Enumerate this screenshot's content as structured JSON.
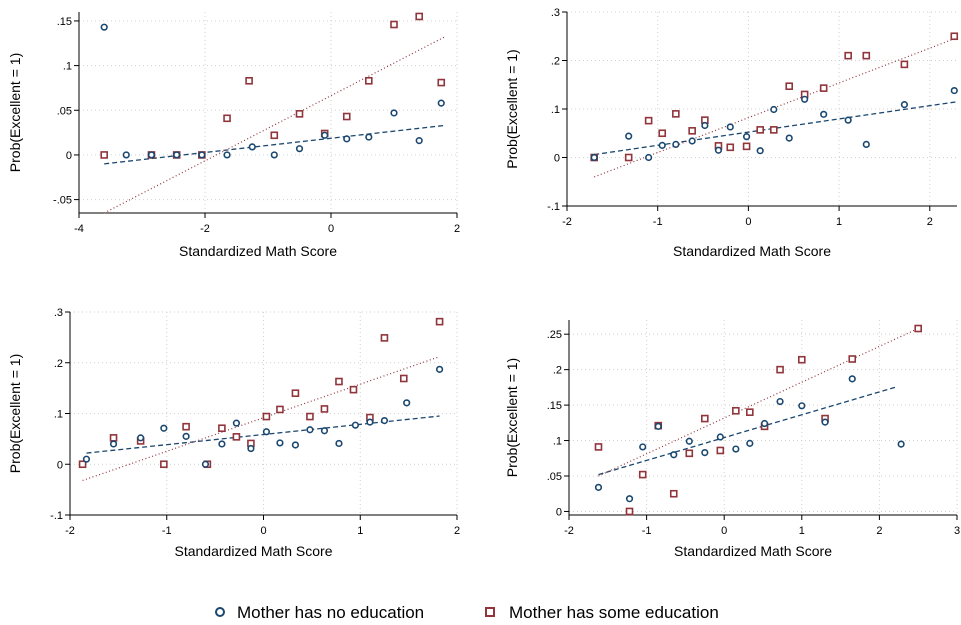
{
  "legend": {
    "position": "bottom",
    "items": [
      {
        "label": "Mother has no education",
        "marker": "circle",
        "color": "#1a476f"
      },
      {
        "label": "Mother has some education",
        "marker": "square",
        "color": "#90353b"
      }
    ]
  },
  "chart_data": [
    {
      "type": "scatter",
      "xlabel": "Standardized Math Score",
      "ylabel": "Prob(Excellent = 1)",
      "xlim": [
        -4,
        2
      ],
      "ylim": [
        -0.065,
        0.16
      ],
      "xticks": [
        -4,
        -2,
        0,
        2
      ],
      "xtick_labels": [
        "-4",
        "-2",
        "0",
        "2"
      ],
      "yticks": [
        -0.05,
        0,
        0.05,
        0.1,
        0.15
      ],
      "ytick_labels": [
        "-.05",
        "0",
        ".05",
        ".1",
        ".15"
      ],
      "grid": true,
      "series": [
        {
          "name": "Mother has no education",
          "marker": "circle",
          "color": "#1a476f",
          "points": [
            [
              -3.6,
              0.143
            ],
            [
              -3.25,
              0.0
            ],
            [
              -2.85,
              0.0
            ],
            [
              -2.45,
              0.0
            ],
            [
              -2.05,
              0.0
            ],
            [
              -1.65,
              0.0
            ],
            [
              -1.25,
              0.009
            ],
            [
              -0.9,
              0.0
            ],
            [
              -0.5,
              0.007
            ],
            [
              -0.1,
              0.022
            ],
            [
              0.25,
              0.018
            ],
            [
              0.6,
              0.02
            ],
            [
              1.0,
              0.047
            ],
            [
              1.4,
              0.016
            ],
            [
              1.75,
              0.058
            ]
          ],
          "fit": {
            "style": "dashed",
            "x": [
              -3.6,
              1.8
            ],
            "y": [
              -0.01,
              0.033
            ]
          }
        },
        {
          "name": "Mother has some education",
          "marker": "square",
          "color": "#90353b",
          "points": [
            [
              -3.6,
              0.0
            ],
            [
              -2.85,
              0.0
            ],
            [
              -2.45,
              0.0
            ],
            [
              -2.05,
              0.0
            ],
            [
              -1.65,
              0.041
            ],
            [
              -1.3,
              0.083
            ],
            [
              -0.9,
              0.022
            ],
            [
              -0.5,
              0.046
            ],
            [
              -0.1,
              0.024
            ],
            [
              0.25,
              0.043
            ],
            [
              0.6,
              0.083
            ],
            [
              1.0,
              0.146
            ],
            [
              1.4,
              0.155
            ],
            [
              1.75,
              0.081
            ]
          ],
          "fit": {
            "style": "dotted",
            "x": [
              -3.6,
              1.8
            ],
            "y": [
              -0.065,
              0.132
            ]
          }
        }
      ]
    },
    {
      "type": "scatter",
      "xlabel": "Standardized Math Score",
      "ylabel": "Prob(Excellent = 1)",
      "xlim": [
        -2,
        2.3
      ],
      "ylim": [
        -0.1,
        0.3
      ],
      "xticks": [
        -2,
        -1,
        0,
        1,
        2
      ],
      "xtick_labels": [
        "-2",
        "-1",
        "0",
        "1",
        "2"
      ],
      "yticks": [
        -0.1,
        0,
        0.1,
        0.2,
        0.3
      ],
      "ytick_labels": [
        "-.1",
        "0",
        ".1",
        ".2",
        ".3"
      ],
      "grid": true,
      "series": [
        {
          "name": "Mother has no education",
          "marker": "circle",
          "color": "#1a476f",
          "points": [
            [
              -1.7,
              0.0
            ],
            [
              -1.32,
              0.044
            ],
            [
              -1.1,
              0.0
            ],
            [
              -0.95,
              0.025
            ],
            [
              -0.8,
              0.027
            ],
            [
              -0.62,
              0.034
            ],
            [
              -0.48,
              0.066
            ],
            [
              -0.33,
              0.015
            ],
            [
              -0.2,
              0.063
            ],
            [
              -0.02,
              0.043
            ],
            [
              0.13,
              0.014
            ],
            [
              0.28,
              0.099
            ],
            [
              0.45,
              0.04
            ],
            [
              0.62,
              0.12
            ],
            [
              0.83,
              0.089
            ],
            [
              1.1,
              0.077
            ],
            [
              1.3,
              0.027
            ],
            [
              1.72,
              0.109
            ],
            [
              2.27,
              0.138
            ]
          ],
          "fit": {
            "style": "dashed",
            "x": [
              -1.7,
              2.3
            ],
            "y": [
              0.006,
              0.115
            ]
          }
        },
        {
          "name": "Mother has some education",
          "marker": "square",
          "color": "#90353b",
          "points": [
            [
              -1.7,
              0.0
            ],
            [
              -1.32,
              0.0
            ],
            [
              -1.1,
              0.076
            ],
            [
              -0.95,
              0.05
            ],
            [
              -0.8,
              0.09
            ],
            [
              -0.62,
              0.055
            ],
            [
              -0.48,
              0.077
            ],
            [
              -0.33,
              0.024
            ],
            [
              -0.2,
              0.021
            ],
            [
              -0.02,
              0.023
            ],
            [
              0.13,
              0.057
            ],
            [
              0.28,
              0.057
            ],
            [
              0.45,
              0.147
            ],
            [
              0.62,
              0.13
            ],
            [
              0.83,
              0.143
            ],
            [
              1.1,
              0.21
            ],
            [
              1.3,
              0.21
            ],
            [
              1.72,
              0.192
            ],
            [
              2.27,
              0.25
            ]
          ],
          "fit": {
            "style": "dotted",
            "x": [
              -1.7,
              2.3
            ],
            "y": [
              -0.04,
              0.247
            ]
          }
        }
      ]
    },
    {
      "type": "scatter",
      "xlabel": "Standardized Math Score",
      "ylabel": "Prob(Excellent = 1)",
      "xlim": [
        -2,
        2
      ],
      "ylim": [
        -0.1,
        0.3
      ],
      "xticks": [
        -2,
        -1,
        0,
        1,
        2
      ],
      "xtick_labels": [
        "-2",
        "-1",
        "0",
        "1",
        "2"
      ],
      "yticks": [
        -0.1,
        0,
        0.1,
        0.2,
        0.3
      ],
      "ytick_labels": [
        "-.1",
        "0",
        ".1",
        ".2",
        ".3"
      ],
      "grid": true,
      "series": [
        {
          "name": "Mother has no education",
          "marker": "circle",
          "color": "#1a476f",
          "points": [
            [
              -1.83,
              0.01
            ],
            [
              -1.55,
              0.04
            ],
            [
              -1.27,
              0.052
            ],
            [
              -1.03,
              0.071
            ],
            [
              -0.8,
              0.055
            ],
            [
              -0.6,
              0.0
            ],
            [
              -0.43,
              0.04
            ],
            [
              -0.28,
              0.081
            ],
            [
              -0.13,
              0.031
            ],
            [
              0.03,
              0.064
            ],
            [
              0.17,
              0.042
            ],
            [
              0.33,
              0.038
            ],
            [
              0.48,
              0.068
            ],
            [
              0.63,
              0.066
            ],
            [
              0.78,
              0.041
            ],
            [
              0.95,
              0.077
            ],
            [
              1.1,
              0.083
            ],
            [
              1.25,
              0.086
            ],
            [
              1.48,
              0.121
            ],
            [
              1.82,
              0.187
            ]
          ],
          "fit": {
            "style": "dashed",
            "x": [
              -1.83,
              1.82
            ],
            "y": [
              0.022,
              0.095
            ]
          }
        },
        {
          "name": "Mother has some education",
          "marker": "square",
          "color": "#90353b",
          "points": [
            [
              -1.87,
              0.0
            ],
            [
              -1.55,
              0.052
            ],
            [
              -1.27,
              0.046
            ],
            [
              -1.03,
              0.0
            ],
            [
              -0.8,
              0.074
            ],
            [
              -0.58,
              0.0
            ],
            [
              -0.43,
              0.071
            ],
            [
              -0.28,
              0.054
            ],
            [
              -0.13,
              0.041
            ],
            [
              0.03,
              0.094
            ],
            [
              0.17,
              0.108
            ],
            [
              0.33,
              0.14
            ],
            [
              0.48,
              0.094
            ],
            [
              0.63,
              0.109
            ],
            [
              0.78,
              0.163
            ],
            [
              0.93,
              0.147
            ],
            [
              1.1,
              0.092
            ],
            [
              1.25,
              0.249
            ],
            [
              1.45,
              0.169
            ],
            [
              1.82,
              0.281
            ]
          ],
          "fit": {
            "style": "dotted",
            "x": [
              -1.87,
              1.82
            ],
            "y": [
              -0.032,
              0.212
            ]
          }
        }
      ]
    },
    {
      "type": "scatter",
      "xlabel": "Standardized Math Score",
      "ylabel": "Prob(Excellent = 1)",
      "xlim": [
        -2,
        3
      ],
      "ylim": [
        -0.005,
        0.27
      ],
      "xticks": [
        -2,
        -1,
        0,
        1,
        2,
        3
      ],
      "xtick_labels": [
        "-2",
        "-1",
        "0",
        "1",
        "2",
        "3"
      ],
      "yticks": [
        0,
        0.05,
        0.1,
        0.15,
        0.2,
        0.25
      ],
      "ytick_labels": [
        "0",
        ".05",
        ".1",
        ".15",
        ".2",
        ".25"
      ],
      "grid": true,
      "series": [
        {
          "name": "Mother has no education",
          "marker": "circle",
          "color": "#1a476f",
          "points": [
            [
              -1.62,
              0.034
            ],
            [
              -1.22,
              0.018
            ],
            [
              -1.05,
              0.091
            ],
            [
              -0.85,
              0.12
            ],
            [
              -0.65,
              0.08
            ],
            [
              -0.45,
              0.099
            ],
            [
              -0.25,
              0.083
            ],
            [
              -0.05,
              0.105
            ],
            [
              0.15,
              0.088
            ],
            [
              0.33,
              0.096
            ],
            [
              0.52,
              0.124
            ],
            [
              0.72,
              0.155
            ],
            [
              1.0,
              0.149
            ],
            [
              1.3,
              0.126
            ],
            [
              1.65,
              0.187
            ],
            [
              2.28,
              0.095
            ]
          ],
          "fit": {
            "style": "dashed",
            "x": [
              -1.62,
              2.2
            ],
            "y": [
              0.052,
              0.175
            ]
          }
        },
        {
          "name": "Mother has some education",
          "marker": "square",
          "color": "#90353b",
          "points": [
            [
              -1.62,
              0.091
            ],
            [
              -1.22,
              0.0
            ],
            [
              -1.05,
              0.052
            ],
            [
              -0.85,
              0.121
            ],
            [
              -0.65,
              0.025
            ],
            [
              -0.45,
              0.082
            ],
            [
              -0.25,
              0.131
            ],
            [
              -0.05,
              0.086
            ],
            [
              0.15,
              0.142
            ],
            [
              0.33,
              0.14
            ],
            [
              0.52,
              0.12
            ],
            [
              0.72,
              0.2
            ],
            [
              1.0,
              0.214
            ],
            [
              1.3,
              0.131
            ],
            [
              1.65,
              0.215
            ],
            [
              2.5,
              0.258
            ]
          ],
          "fit": {
            "style": "dotted",
            "x": [
              -1.62,
              2.5
            ],
            "y": [
              0.05,
              0.258
            ]
          }
        }
      ]
    }
  ]
}
